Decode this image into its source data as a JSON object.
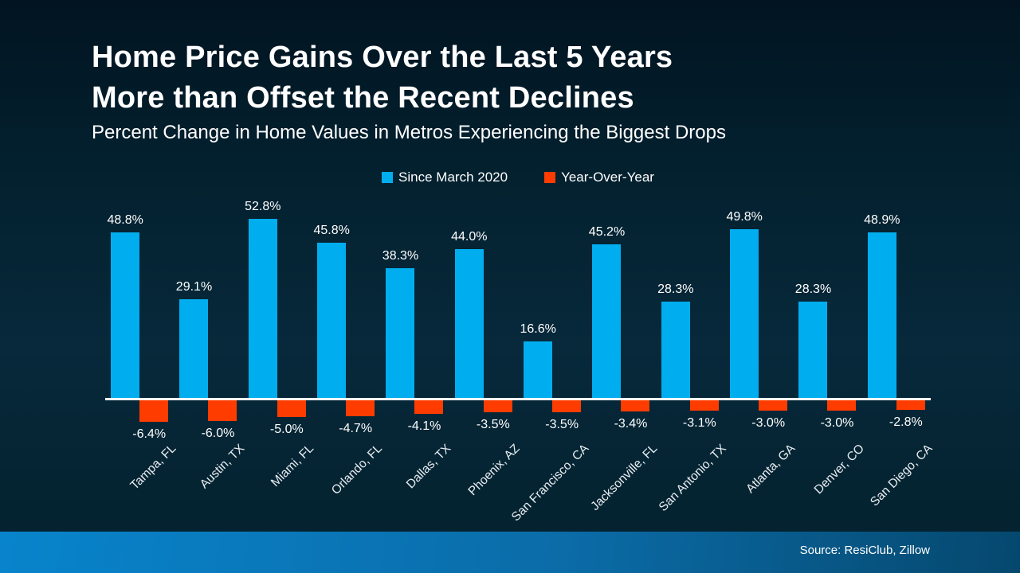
{
  "title": {
    "line1": "Home Price Gains Over the Last 5 Years",
    "line2": "More than Offset the Recent Declines"
  },
  "subtitle": "Percent Change in Home Values in Metros Experiencing the Biggest Drops",
  "legend": {
    "items": [
      {
        "label": "Since March 2020",
        "color": "#00AEEF"
      },
      {
        "label": "Year-Over-Year",
        "color": "#FF3C00"
      }
    ]
  },
  "footer": {
    "source": "Source: ResiClub, Zillow"
  },
  "colors": {
    "background_top": "#021421",
    "background_mid": "#07293B",
    "axis": "#FFFFFF",
    "footer_gradient_left": "#0884CC",
    "footer_gradient_right": "#05486E",
    "positive_bar": "#00AEEF",
    "negative_bar": "#FF3C00"
  },
  "chart_data": {
    "type": "bar",
    "title": "Home Price Gains Over the Last 5 Years More than Offset the Recent Declines",
    "subtitle": "Percent Change in Home Values in Metros Experiencing the Biggest Drops",
    "categories": [
      "Tampa, FL",
      "Austin, TX",
      "Miami, FL",
      "Orlando, FL",
      "Dallas, TX",
      "Phoenix, AZ",
      "San Francisco, CA",
      "Jacksonville, FL",
      "San Antonio, TX",
      "Atlanta, GA",
      "Denver, CO",
      "San Diego, CA"
    ],
    "series": [
      {
        "name": "Since March 2020",
        "color": "#00AEEF",
        "values": [
          48.8,
          29.1,
          52.8,
          45.8,
          38.3,
          44.0,
          16.6,
          45.2,
          28.3,
          49.8,
          28.3,
          48.9
        ]
      },
      {
        "name": "Year-Over-Year",
        "color": "#FF3C00",
        "values": [
          -6.4,
          -6.0,
          -5.0,
          -4.7,
          -4.1,
          -3.5,
          -3.5,
          -3.4,
          -3.1,
          -3.0,
          -3.0,
          -2.8
        ]
      }
    ],
    "data_labels": true,
    "label_format": "one_decimal_percent",
    "legend_position": "top",
    "grid": false,
    "baseline": 0,
    "ylim": [
      -8,
      56
    ],
    "x_tick_rotation": 45
  }
}
